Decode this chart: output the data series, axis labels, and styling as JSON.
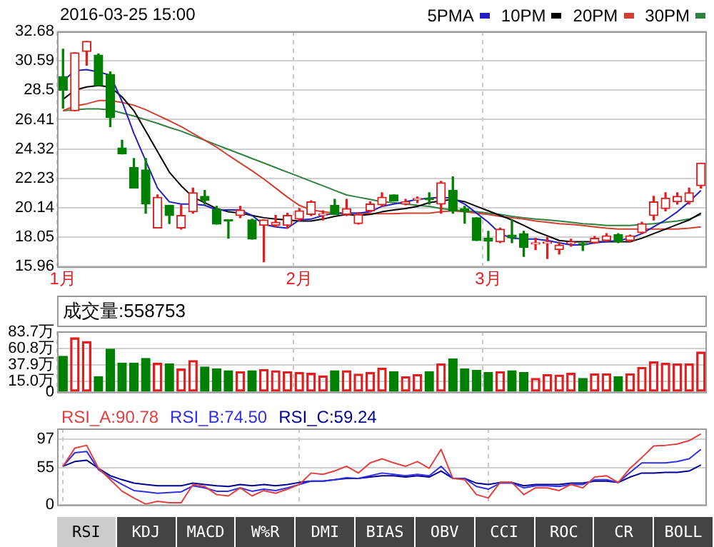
{
  "chart_data": [
    {
      "type": "candlestick",
      "title": "2016-03-25 15:00",
      "categories": [
        "1月",
        null,
        null,
        null,
        null,
        null,
        null,
        null,
        null,
        null,
        null,
        null,
        null,
        null,
        null,
        null,
        null,
        null,
        null,
        null,
        "2月",
        null,
        null,
        null,
        null,
        null,
        null,
        null,
        null,
        null,
        null,
        null,
        null,
        null,
        null,
        null,
        "3月",
        null,
        null,
        null,
        null,
        null,
        null,
        null,
        null,
        null,
        null,
        null,
        null,
        null,
        null,
        null,
        null,
        null,
        null
      ],
      "ohlc": [
        [
          29.47,
          31.42,
          27.21,
          28.5
        ],
        [
          27.04,
          31.16,
          27.04,
          31.16
        ],
        [
          31.25,
          31.97,
          30.28,
          31.97
        ],
        [
          30.99,
          31.09,
          28.83,
          28.83
        ],
        [
          29.63,
          29.8,
          25.91,
          26.56
        ],
        [
          24.39,
          24.94,
          23.97,
          23.97
        ],
        [
          23.0,
          23.64,
          21.54,
          21.54
        ],
        [
          22.83,
          23.64,
          19.75,
          20.4
        ],
        [
          18.69,
          21.05,
          18.69,
          20.89
        ],
        [
          20.31,
          20.31,
          19.01,
          19.59
        ],
        [
          18.69,
          20.3,
          18.62,
          19.59
        ],
        [
          19.85,
          21.54,
          19.75,
          21.21
        ],
        [
          20.95,
          21.37,
          20.4,
          20.66
        ],
        [
          20.02,
          20.24,
          18.97,
          18.97
        ],
        [
          19.27,
          19.27,
          17.97,
          19.2
        ],
        [
          19.59,
          20.24,
          19.43,
          19.98
        ],
        [
          19.27,
          19.33,
          17.91,
          17.91
        ],
        [
          18.88,
          19.27,
          16.29,
          19.27
        ],
        [
          18.88,
          19.59,
          18.78,
          19.11
        ],
        [
          18.88,
          19.75,
          18.69,
          19.59
        ],
        [
          19.33,
          20.08,
          19.2,
          19.92
        ],
        [
          19.66,
          20.63,
          19.59,
          20.56
        ],
        [
          19.6,
          19.92,
          19.27,
          19.66
        ],
        [
          20.31,
          20.73,
          19.66,
          19.66
        ],
        [
          19.66,
          20.73,
          19.59,
          20.08
        ],
        [
          19.01,
          19.8,
          18.97,
          19.66
        ],
        [
          19.92,
          20.56,
          19.85,
          20.4
        ],
        [
          20.34,
          21.21,
          20.24,
          20.89
        ],
        [
          21.05,
          21.05,
          20.63,
          20.63
        ],
        [
          20.4,
          20.73,
          20.34,
          20.56
        ],
        [
          20.7,
          20.9,
          20.5,
          20.76
        ],
        [
          20.82,
          21.21,
          20.4,
          20.7
        ],
        [
          20.4,
          22.02,
          19.75,
          21.92
        ],
        [
          21.37,
          22.34,
          19.75,
          19.92
        ],
        [
          20.08,
          20.24,
          19.04,
          19.85
        ],
        [
          19.43,
          19.43,
          17.81,
          17.81
        ],
        [
          17.97,
          18.46,
          16.39,
          17.75
        ],
        [
          17.72,
          18.69,
          17.65,
          18.62
        ],
        [
          18.2,
          19.27,
          17.65,
          18.0
        ],
        [
          18.3,
          18.46,
          16.68,
          17.32
        ],
        [
          17.55,
          17.97,
          17.16,
          17.6
        ],
        [
          17.6,
          18.04,
          16.52,
          17.65
        ],
        [
          17.16,
          17.65,
          16.84,
          17.49
        ],
        [
          17.6,
          17.9,
          17.4,
          17.65
        ],
        [
          17.55,
          17.7,
          17.1,
          17.5
        ],
        [
          17.65,
          18.1,
          17.6,
          17.97
        ],
        [
          17.81,
          18.3,
          17.75,
          18.14
        ],
        [
          18.23,
          18.3,
          17.65,
          17.72
        ],
        [
          17.81,
          18.2,
          17.7,
          18.14
        ],
        [
          18.36,
          19.11,
          18.3,
          19.01
        ],
        [
          19.59,
          20.95,
          19.27,
          20.56
        ],
        [
          20.08,
          21.21,
          19.92,
          20.82
        ],
        [
          20.56,
          21.21,
          20.4,
          20.95
        ],
        [
          20.56,
          21.54,
          20.4,
          21.21
        ],
        [
          21.7,
          23.32,
          21.54,
          23.32
        ]
      ],
      "colors": [
        "#008000",
        "#e02020",
        "#e02020",
        "#008000",
        "#008000",
        "#008000",
        "#008000",
        "#008000",
        "#e02020",
        "#008000",
        "#e02020",
        "#e02020",
        "#008000",
        "#008000",
        "#008000",
        "#e02020",
        "#008000",
        "#e02020",
        "#e02020",
        "#e02020",
        "#e02020",
        "#e02020",
        "#e02020",
        "#008000",
        "#e02020",
        "#e02020",
        "#e02020",
        "#e02020",
        "#008000",
        "#e02020",
        "#e02020",
        "#008000",
        "#e02020",
        "#008000",
        "#008000",
        "#008000",
        "#008000",
        "#e02020",
        "#008000",
        "#008000",
        "#e02020",
        "#e02020",
        "#e02020",
        "#e02020",
        "#008000",
        "#e02020",
        "#e02020",
        "#008000",
        "#e02020",
        "#e02020",
        "#e02020",
        "#e02020",
        "#e02020",
        "#e02020",
        "#e02020"
      ],
      "series": [
        {
          "name": "5PMA",
          "type": "line",
          "color": "#2020c0",
          "values": [
            29.15,
            29.89,
            29.96,
            29.8,
            29.57,
            27.69,
            25.42,
            23.48,
            21.54,
            20.56,
            20.4,
            20.4,
            20.31,
            19.98,
            19.98,
            19.98,
            19.59,
            18.95,
            18.78,
            18.69,
            19.27,
            19.33,
            19.59,
            19.76,
            19.76,
            19.76,
            19.85,
            20.24,
            20.4,
            20.57,
            20.73,
            20.82,
            20.89,
            20.82,
            20.4,
            19.76,
            19.11,
            18.3,
            17.97,
            17.91,
            17.91,
            17.81,
            17.65,
            17.49,
            17.49,
            17.65,
            17.72,
            17.81,
            17.97,
            18.3,
            18.78,
            19.27,
            19.85,
            20.56,
            21.37
          ]
        },
        {
          "name": "10PM",
          "type": "line",
          "color": "#000000",
          "values": [
            27.85,
            28.5,
            28.73,
            28.83,
            28.73,
            28.02,
            27.04,
            25.59,
            24.13,
            22.67,
            21.7,
            20.89,
            20.5,
            20.08,
            19.85,
            19.76,
            19.59,
            19.43,
            19.33,
            19.27,
            19.2,
            19.2,
            19.33,
            19.53,
            19.66,
            19.59,
            19.66,
            19.85,
            19.98,
            20.08,
            20.24,
            20.5,
            20.63,
            20.73,
            20.57,
            20.24,
            19.92,
            19.59,
            19.27,
            18.88,
            18.46,
            18.14,
            17.81,
            17.72,
            17.72,
            17.72,
            17.72,
            17.72,
            17.72,
            17.97,
            18.3,
            18.62,
            18.95,
            19.27,
            19.76
          ]
        },
        {
          "name": "20PM",
          "type": "line",
          "color": "#d04030",
          "values": [
            27.04,
            27.37,
            27.53,
            27.76,
            27.76,
            27.63,
            27.43,
            27.11,
            26.72,
            26.33,
            25.91,
            25.42,
            24.94,
            24.45,
            23.87,
            23.32,
            22.77,
            22.18,
            21.54,
            20.89,
            20.31,
            19.98,
            19.85,
            19.76,
            19.76,
            19.76,
            19.72,
            19.72,
            19.72,
            19.76,
            19.76,
            19.76,
            19.85,
            19.92,
            19.85,
            19.76,
            19.66,
            19.53,
            19.43,
            19.33,
            19.2,
            19.11,
            19.01,
            18.95,
            18.88,
            18.78,
            18.69,
            18.62,
            18.62,
            18.62,
            18.62,
            18.62,
            18.62,
            18.69,
            18.78
          ]
        },
        {
          "name": "30PM",
          "type": "line",
          "color": "#308040",
          "values": [
            27.04,
            27.11,
            27.17,
            27.17,
            27.11,
            26.88,
            26.66,
            26.4,
            26.14,
            25.85,
            25.59,
            25.26,
            24.94,
            24.61,
            24.29,
            23.97,
            23.64,
            23.32,
            22.99,
            22.67,
            22.35,
            22.02,
            21.7,
            21.37,
            21.05,
            20.89,
            20.73,
            20.57,
            20.5,
            20.4,
            20.31,
            20.24,
            20.08,
            19.98,
            19.92,
            19.85,
            19.76,
            19.66,
            19.53,
            19.43,
            19.33,
            19.27,
            19.2,
            19.11,
            19.01,
            18.95,
            18.88,
            18.88,
            18.88,
            18.95,
            19.01,
            19.11,
            19.2,
            19.33,
            19.66
          ]
        }
      ],
      "ylim": [
        15.96,
        32.68
      ],
      "yticks": [
        15.96,
        18.05,
        20.14,
        22.23,
        24.32,
        26.41,
        28.5,
        30.59,
        32.68
      ],
      "grid": true,
      "legend": "top right",
      "marker": "none"
    },
    {
      "type": "bar",
      "title": "成交量:558753",
      "categories": [
        null,
        null,
        null,
        null,
        null,
        null,
        null,
        null,
        null,
        null,
        null,
        null,
        null,
        null,
        null,
        null,
        null,
        null,
        null,
        null,
        null,
        null,
        null,
        null,
        null,
        null,
        null,
        null,
        null,
        null,
        null,
        null,
        null,
        null,
        null,
        null,
        null,
        null,
        null,
        null,
        null,
        null,
        null,
        null,
        null,
        null,
        null,
        null,
        null,
        null,
        null,
        null,
        null,
        null,
        null
      ],
      "values": [
        49.9,
        76.0,
        70.7,
        21.4,
        60.0,
        40.4,
        40.4,
        46.9,
        40.4,
        39.2,
        32.1,
        44.0,
        35.0,
        32.1,
        29.7,
        28.5,
        29.7,
        31.5,
        29.7,
        28.5,
        27.3,
        26.1,
        22.6,
        29.7,
        29.7,
        24.9,
        27.3,
        33.3,
        28.5,
        21.4,
        24.4,
        28.5,
        39.2,
        46.3,
        32.1,
        30.3,
        27.3,
        28.5,
        29.7,
        27.3,
        19.0,
        24.4,
        23.8,
        26.1,
        19.0,
        25.5,
        25.5,
        21.4,
        25.5,
        34.5,
        42.2,
        40.4,
        39.2,
        39.2,
        55.9
      ],
      "colors": [
        "#008000",
        "#e02020",
        "#e02020",
        "#008000",
        "#008000",
        "#008000",
        "#008000",
        "#008000",
        "#e02020",
        "#008000",
        "#e02020",
        "#e02020",
        "#008000",
        "#008000",
        "#008000",
        "#e02020",
        "#008000",
        "#e02020",
        "#e02020",
        "#e02020",
        "#e02020",
        "#e02020",
        "#e02020",
        "#008000",
        "#e02020",
        "#e02020",
        "#e02020",
        "#e02020",
        "#008000",
        "#e02020",
        "#e02020",
        "#008000",
        "#e02020",
        "#008000",
        "#008000",
        "#008000",
        "#008000",
        "#e02020",
        "#008000",
        "#008000",
        "#e02020",
        "#e02020",
        "#e02020",
        "#e02020",
        "#008000",
        "#e02020",
        "#e02020",
        "#008000",
        "#e02020",
        "#e02020",
        "#e02020",
        "#e02020",
        "#e02020",
        "#e02020",
        "#e02020"
      ],
      "ylim": [
        0,
        85
      ],
      "yticks": [
        0,
        {
          "value": 15,
          "label": "15.0万"
        },
        {
          "value": 37.9,
          "label": "37.9万"
        },
        {
          "value": 60.8,
          "label": "60.8万"
        },
        {
          "value": 83.7,
          "label": "83.7万"
        }
      ],
      "grid": true,
      "tick_labels": "y"
    },
    {
      "type": "line",
      "categories": [
        null,
        null,
        null,
        null,
        null,
        null,
        null,
        null,
        null,
        null,
        null,
        null,
        null,
        null,
        null,
        null,
        null,
        null,
        null,
        null,
        null,
        null,
        null,
        null,
        null,
        null,
        null,
        null,
        null,
        null,
        null,
        null,
        null,
        null,
        null,
        null,
        null,
        null,
        null,
        null,
        null,
        null,
        null,
        null,
        null,
        null,
        null,
        null,
        null,
        null,
        null,
        null,
        null,
        null,
        null
      ],
      "series": [
        {
          "name": "RSI_A:90.78",
          "color": "#e04040",
          "values": [
            57,
            84,
            88,
            54,
            37,
            20,
            10,
            1,
            5,
            3,
            3,
            30,
            27,
            15,
            13,
            25,
            13,
            21,
            17,
            23,
            30,
            47,
            45,
            50,
            57,
            47,
            62,
            68,
            62,
            57,
            64,
            54,
            82,
            39,
            37,
            15,
            10,
            33,
            33,
            15,
            25,
            25,
            21,
            30,
            25,
            41,
            43,
            33,
            54,
            70,
            87,
            88,
            90,
            95,
            105
          ]
        },
        {
          "name": "RSI_B:74.50",
          "color": "#3030e0",
          "values": [
            57,
            77,
            79,
            52,
            40,
            30,
            21,
            19,
            17,
            18,
            19,
            28,
            25,
            20,
            20,
            25,
            20,
            23,
            21,
            25,
            30,
            35,
            35,
            37,
            40,
            39,
            43,
            47,
            45,
            43,
            45,
            43,
            57,
            39,
            39,
            27,
            23,
            32,
            32,
            25,
            28,
            28,
            27,
            30,
            30,
            37,
            37,
            33,
            48,
            62,
            62,
            62,
            64,
            68,
            82
          ]
        },
        {
          "name": "RSI_C:59.24",
          "color": "#000090",
          "values": [
            57,
            64,
            66,
            54,
            43,
            37,
            32,
            30,
            28,
            28,
            28,
            32,
            30,
            28,
            27,
            30,
            28,
            30,
            28,
            30,
            33,
            35,
            35,
            37,
            39,
            39,
            41,
            43,
            43,
            41,
            43,
            41,
            50,
            39,
            39,
            32,
            30,
            33,
            33,
            28,
            30,
            30,
            30,
            32,
            32,
            35,
            35,
            33,
            41,
            47,
            47,
            48,
            48,
            50,
            59
          ]
        }
      ],
      "ylim": [
        0,
        113
      ],
      "yticks": [
        0,
        55,
        97
      ],
      "grid": true,
      "tick_labels": "y",
      "legend": "top left",
      "marker": "none",
      "annotations": [
        "RSI",
        "KDJ",
        "MACD",
        "W%R",
        "DMI",
        "BIAS",
        "OBV",
        "CCI",
        "ROC",
        "CR",
        "BOLL"
      ]
    }
  ]
}
